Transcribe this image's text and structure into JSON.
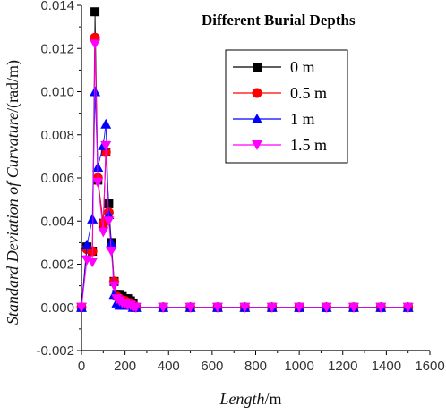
{
  "chart_data": {
    "type": "line",
    "title": "Different Burial Depths",
    "xlabel": "Length",
    "xlabel_unit": "/m",
    "ylabel": "Standard Deviation of Curvature",
    "ylabel_unit": "/(rad/m)",
    "xlim": [
      0,
      1600
    ],
    "ylim": [
      -0.002,
      0.014
    ],
    "x_ticks": [
      0,
      200,
      400,
      600,
      800,
      1000,
      1200,
      1400,
      1600
    ],
    "y_ticks": [
      -0.002,
      0.0,
      0.002,
      0.004,
      0.006,
      0.008,
      0.01,
      0.012,
      0.014
    ],
    "x_tick_labels": [
      "0",
      "200",
      "400",
      "600",
      "800",
      "1000",
      "1200",
      "1400",
      "1600"
    ],
    "y_tick_labels": [
      "-0.002",
      "0.000",
      "0.002",
      "0.004",
      "0.006",
      "0.008",
      "0.010",
      "0.012",
      "0.014"
    ],
    "legend_position": "top-right",
    "grid": false,
    "series": [
      {
        "name": "0 m",
        "color": "#000000",
        "marker": "square",
        "x": [
          0,
          25,
          50,
          62,
          75,
          100,
          112,
          125,
          137,
          150,
          162,
          175,
          187,
          200,
          212,
          225,
          237,
          250,
          375,
          500,
          625,
          750,
          875,
          1000,
          1125,
          1250,
          1375,
          1500
        ],
        "y": [
          0.0,
          0.0028,
          0.0026,
          0.0137,
          0.0059,
          0.0039,
          0.0072,
          0.0048,
          0.003,
          0.0012,
          0.0006,
          0.0006,
          0.0005,
          0.0004,
          0.0004,
          0.0003,
          0.0002,
          0.0,
          0.0,
          0.0,
          0.0,
          0.0,
          0.0,
          0.0,
          0.0,
          0.0,
          0.0,
          0.0
        ]
      },
      {
        "name": "0.5 m",
        "color": "#ff0000",
        "marker": "circle",
        "x": [
          0,
          25,
          50,
          62,
          75,
          100,
          112,
          125,
          137,
          150,
          162,
          175,
          187,
          200,
          212,
          225,
          237,
          250,
          375,
          500,
          625,
          750,
          875,
          1000,
          1125,
          1250,
          1375,
          1500
        ],
        "y": [
          0.0,
          0.0027,
          0.0026,
          0.0125,
          0.006,
          0.0039,
          0.0072,
          0.0044,
          0.0028,
          0.0012,
          0.0005,
          0.0004,
          0.0003,
          0.0003,
          0.0002,
          0.0002,
          0.0001,
          0.0,
          0.0,
          0.0,
          0.0,
          0.0,
          0.0,
          0.0,
          0.0,
          0.0,
          0.0,
          0.0
        ]
      },
      {
        "name": "1 m",
        "color": "#0000ff",
        "marker": "triangle-up",
        "x": [
          0,
          25,
          50,
          62,
          75,
          100,
          112,
          125,
          137,
          150,
          162,
          175,
          187,
          200,
          212,
          225,
          237,
          250,
          375,
          500,
          625,
          750,
          875,
          1000,
          1125,
          1250,
          1375,
          1500
        ],
        "y": [
          0.0,
          0.0029,
          0.0041,
          0.01,
          0.0065,
          0.0075,
          0.0085,
          0.0043,
          0.003,
          0.0006,
          0.0002,
          0.0001,
          0.0001,
          0.0001,
          0.0001,
          0.0001,
          0.0,
          0.0,
          0.0,
          0.0,
          0.0,
          0.0,
          0.0,
          0.0,
          0.0,
          0.0,
          0.0,
          0.0
        ]
      },
      {
        "name": "1.5 m",
        "color": "#ff00ff",
        "marker": "triangle-down",
        "x": [
          0,
          25,
          50,
          62,
          75,
          100,
          112,
          125,
          137,
          150,
          162,
          175,
          187,
          200,
          212,
          225,
          237,
          250,
          375,
          500,
          625,
          750,
          875,
          1000,
          1125,
          1250,
          1375,
          1500
        ],
        "y": [
          0.0,
          0.0022,
          0.0021,
          0.0122,
          0.0058,
          0.0035,
          0.0075,
          0.004,
          0.0026,
          0.001,
          0.0004,
          0.0003,
          0.0002,
          0.0002,
          0.0001,
          0.0001,
          0.0,
          0.0,
          0.0,
          0.0,
          0.0,
          0.0,
          0.0,
          0.0,
          0.0,
          0.0,
          0.0,
          0.0
        ]
      }
    ]
  }
}
